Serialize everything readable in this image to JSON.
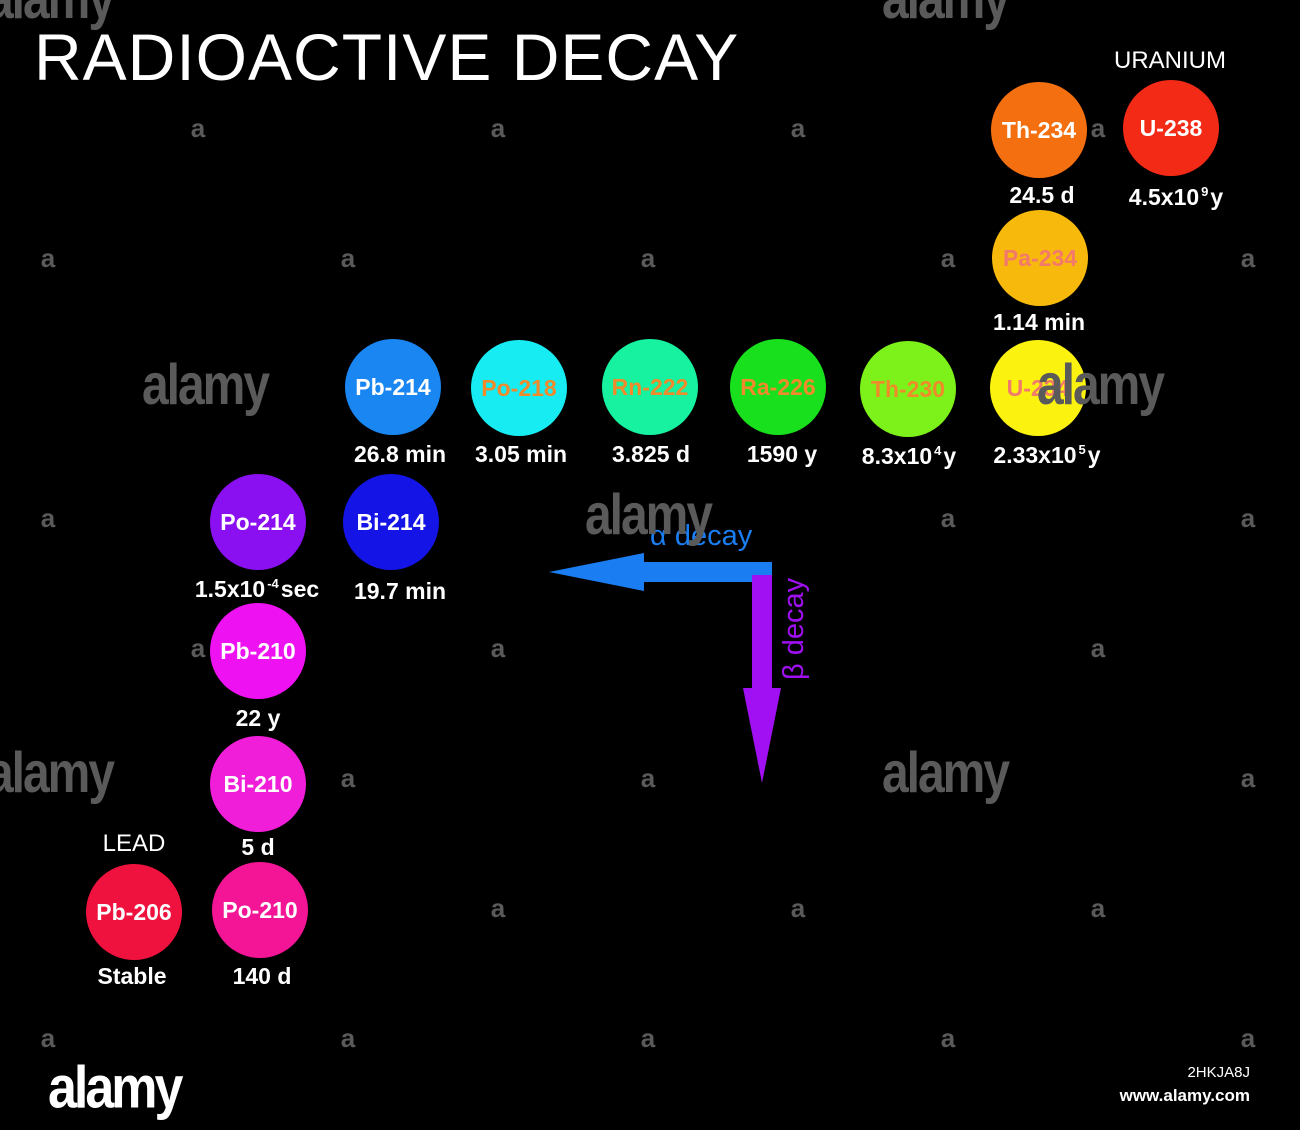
{
  "title": "RADIOACTIVE DECAY",
  "labels": {
    "uranium": "URANIUM",
    "lead": "LEAD"
  },
  "nuclides": [
    {
      "id": "u238",
      "name": "U-238",
      "halflife": "4.5x10",
      "halflife_exp": "9",
      "halflife_unit": "y",
      "color": "#f22a16",
      "text_color": "#ffffff"
    },
    {
      "id": "th234",
      "name": "Th-234",
      "halflife": "24.5 d",
      "color": "#f46f0f",
      "text_color": "#ffffff"
    },
    {
      "id": "pa234",
      "name": "Pa-234",
      "halflife": "1.14 min",
      "color": "#f8b90d",
      "text_color": "#f27a6a"
    },
    {
      "id": "u234",
      "name": "U-234",
      "halflife": "2.33x10",
      "halflife_exp": "5",
      "halflife_unit": "y",
      "color": "#fcf20f",
      "text_color": "#f27a6a"
    },
    {
      "id": "th230",
      "name": "Th-230",
      "halflife": "8.3x10",
      "halflife_exp": "4",
      "halflife_unit": "y",
      "color": "#7df21a",
      "text_color": "#f08a2a"
    },
    {
      "id": "ra226",
      "name": "Ra-226",
      "halflife": "1590 y",
      "color": "#18e01c",
      "text_color": "#f08a2a"
    },
    {
      "id": "rn222",
      "name": "Rn-222",
      "halflife": "3.825 d",
      "color": "#16f2a0",
      "text_color": "#f08a2a"
    },
    {
      "id": "po218",
      "name": "Po-218",
      "halflife": "3.05 min",
      "color": "#16ecf2",
      "text_color": "#f08a2a"
    },
    {
      "id": "pb214",
      "name": "Pb-214",
      "halflife": "26.8 min",
      "color": "#1a86f2",
      "text_color": "#ffffff"
    },
    {
      "id": "bi214",
      "name": "Bi-214",
      "halflife": "19.7 min",
      "color": "#1414e6",
      "text_color": "#ffffff"
    },
    {
      "id": "po214",
      "name": "Po-214",
      "halflife": "1.5x10",
      "halflife_exp": "-4",
      "halflife_unit": "sec",
      "color": "#8a10f2",
      "text_color": "#ffffff"
    },
    {
      "id": "pb210",
      "name": "Pb-210",
      "halflife": "22 y",
      "color": "#ee12f2",
      "text_color": "#ffffff"
    },
    {
      "id": "bi210",
      "name": "Bi-210",
      "halflife": "5 d",
      "color": "#f01ed8",
      "text_color": "#ffffff"
    },
    {
      "id": "po210",
      "name": "Po-210",
      "halflife": "140 d",
      "color": "#f41496",
      "text_color": "#ffffff"
    },
    {
      "id": "pb206",
      "name": "Pb-206",
      "halflife": "Stable",
      "color": "#f0123e",
      "text_color": "#ffffff"
    }
  ],
  "legend": {
    "alpha_label": "α  decay",
    "beta_label": "β decay",
    "alpha_color": "#1a7ef2",
    "beta_color": "#a010f2"
  },
  "watermark": {
    "word": "alamy",
    "letter": "a"
  },
  "footer": {
    "brand": "alamy",
    "image_code": "2HKJA8J",
    "url": "www.alamy.com"
  }
}
